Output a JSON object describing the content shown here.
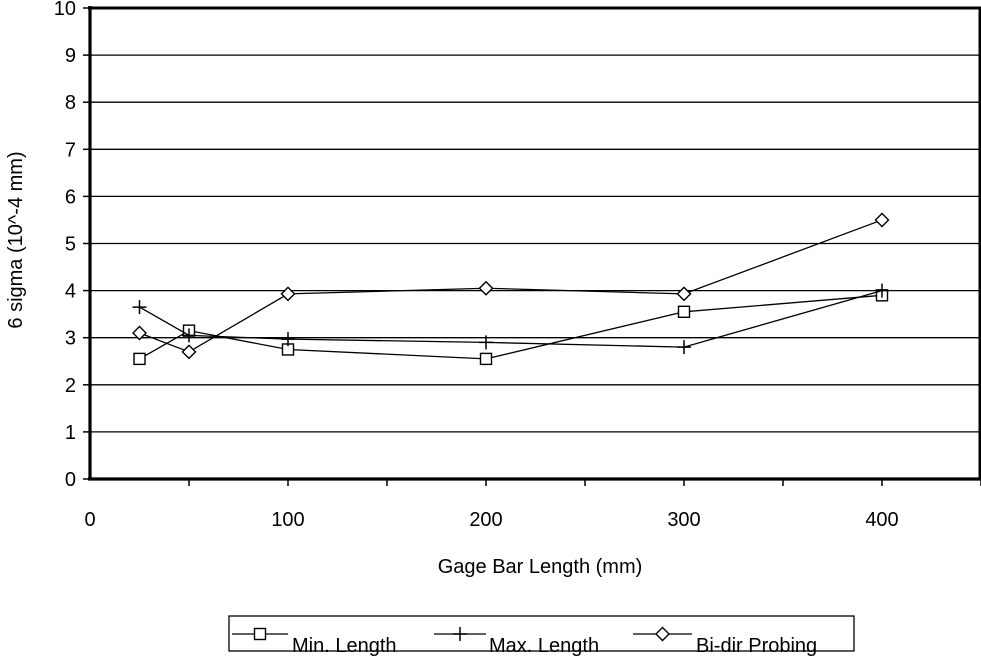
{
  "chart_data": {
    "type": "line",
    "xlabel": "Gage Bar Length (mm)",
    "ylabel": "6 sigma (10^-4 mm)",
    "xlim": [
      0,
      450
    ],
    "ylim": [
      0,
      10
    ],
    "x_ticks": [
      "0",
      "100",
      "200",
      "300",
      "400"
    ],
    "y_ticks": [
      "0",
      "1",
      "2",
      "3",
      "4",
      "5",
      "6",
      "7",
      "8",
      "9",
      "10"
    ],
    "grid": "horizontal",
    "legend_position": "bottom",
    "series": [
      {
        "name": "Min. Length",
        "marker": "square",
        "x": [
          25,
          50,
          100,
          200,
          300,
          400
        ],
        "y": [
          2.55,
          3.15,
          2.75,
          2.55,
          3.55,
          3.9
        ]
      },
      {
        "name": "Max. Length",
        "marker": "plus",
        "x": [
          25,
          50,
          100,
          200,
          300,
          400
        ],
        "y": [
          3.65,
          3.05,
          2.97,
          2.9,
          2.8,
          4.0
        ]
      },
      {
        "name": "Bi-dir Probing",
        "marker": "diamond",
        "x": [
          25,
          50,
          100,
          200,
          300,
          400
        ],
        "y": [
          3.1,
          2.7,
          3.93,
          4.05,
          3.93,
          5.5
        ]
      }
    ]
  }
}
